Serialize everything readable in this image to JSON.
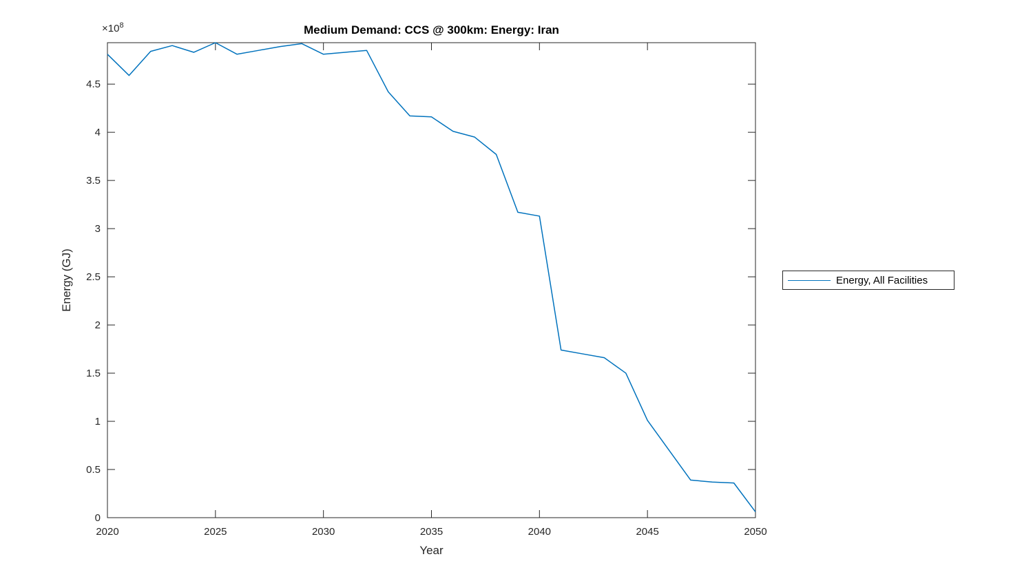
{
  "chart_data": {
    "type": "line",
    "title": "Medium Demand: CCS @ 300km: Energy: Iran",
    "xlabel": "Year",
    "ylabel": "Energy (GJ)",
    "y_exponent_base": "×10",
    "y_exponent_power": "8",
    "x": [
      2020,
      2021,
      2022,
      2023,
      2024,
      2025,
      2026,
      2027,
      2028,
      2029,
      2030,
      2031,
      2032,
      2033,
      2034,
      2035,
      2036,
      2037,
      2038,
      2039,
      2040,
      2041,
      2042,
      2043,
      2044,
      2045,
      2046,
      2047,
      2048,
      2049,
      2050
    ],
    "series": [
      {
        "name": "Energy, All Facilities",
        "values_e8": [
          4.81,
          4.59,
          4.84,
          4.9,
          4.83,
          4.93,
          4.81,
          4.85,
          4.89,
          4.92,
          4.81,
          4.83,
          4.85,
          4.42,
          4.17,
          4.16,
          4.01,
          3.95,
          3.77,
          3.17,
          3.13,
          1.74,
          1.7,
          1.66,
          1.5,
          1.01,
          0.7,
          0.39,
          0.37,
          0.36,
          0.06
        ]
      }
    ],
    "values_unit_multiplier": 100000000,
    "xlim": [
      2020,
      2050
    ],
    "ylim_e8": [
      0,
      4.93
    ],
    "x_ticks": [
      2020,
      2025,
      2030,
      2035,
      2040,
      2045,
      2050
    ],
    "y_ticks_e8": [
      0,
      0.5,
      1,
      1.5,
      2,
      2.5,
      3,
      3.5,
      4,
      4.5
    ],
    "y_tick_labels": [
      "0",
      "0.5",
      "1",
      "1.5",
      "2",
      "2.5",
      "3",
      "3.5",
      "4",
      "4.5"
    ],
    "grid": "off",
    "legend_position": "right-outside",
    "line_color": "#0072BD",
    "axis_color": "#262626",
    "background_color": "#ffffff"
  }
}
